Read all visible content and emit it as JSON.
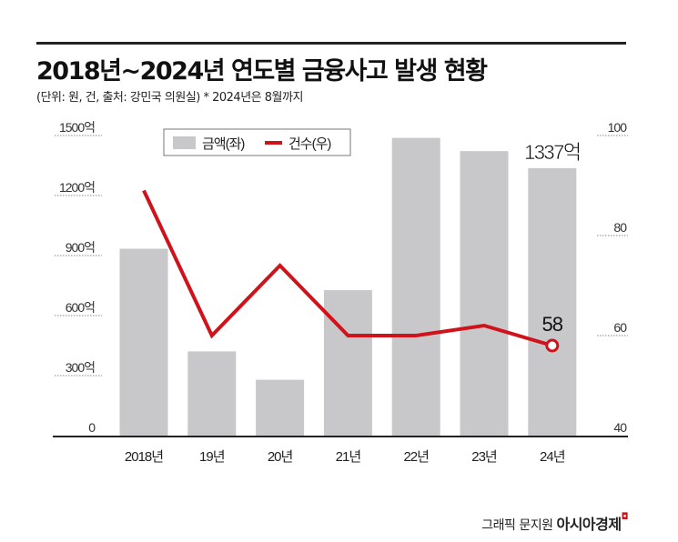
{
  "title": "2018년~2024년 연도별 금융사고 발생 현황",
  "subtitle": "(단위: 원, 건, 출처: 강민국 의원실)  * 2024년은 8월까지",
  "footer": {
    "credit": "그래픽 문지원",
    "brand": "아시아경제"
  },
  "chart_data": {
    "type": "bar+line",
    "categories": [
      "2018년",
      "19년",
      "20년",
      "21년",
      "22년",
      "23년",
      "24년"
    ],
    "series": [
      {
        "name": "금액(좌)",
        "type": "bar",
        "axis": "left",
        "color": "#c8c8ca",
        "values": [
          934,
          421,
          279,
          727,
          1488,
          1422,
          1337
        ]
      },
      {
        "name": "건수(우)",
        "type": "line",
        "axis": "right",
        "color": "#d0121b",
        "values": [
          89,
          60,
          74,
          60,
          60,
          62,
          58
        ]
      }
    ],
    "left_axis": {
      "ylim": [
        0,
        1500
      ],
      "ticks": [
        "0",
        "300억",
        "600억",
        "900억",
        "1200억",
        "1500억"
      ]
    },
    "right_axis": {
      "ylim": [
        40,
        100
      ],
      "ticks": [
        "40",
        "60",
        "80",
        "100"
      ]
    },
    "annotations": [
      "1337억",
      "58"
    ],
    "legend": "top-left"
  }
}
